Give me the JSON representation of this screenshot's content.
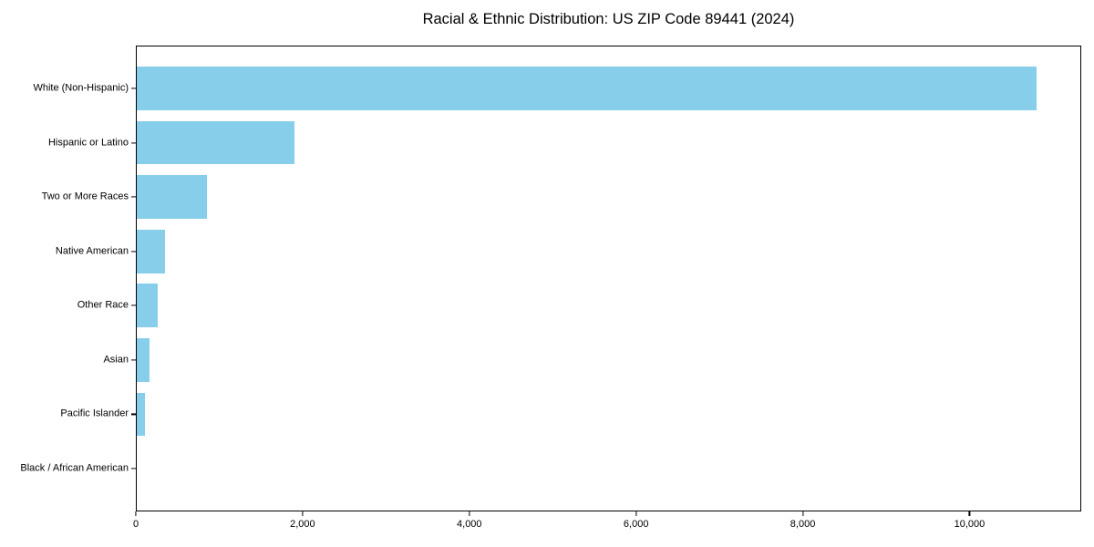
{
  "chart_data": {
    "type": "bar",
    "orientation": "horizontal",
    "title": "Racial & Ethnic Distribution: US ZIP Code 89441 (2024)",
    "categories": [
      "White (Non-Hispanic)",
      "Hispanic or Latino",
      "Two or More Races",
      "Native American",
      "Other Race",
      "Asian",
      "Pacific Islander",
      "Black / African American"
    ],
    "values": [
      10800,
      1900,
      850,
      350,
      260,
      160,
      110,
      0
    ],
    "xlabel": "",
    "ylabel": "",
    "xlim": [
      0,
      11340
    ],
    "xticks": [
      0,
      2000,
      4000,
      6000,
      8000,
      10000
    ],
    "xtick_labels": [
      "0",
      "2,000",
      "4,000",
      "6,000",
      "8,000",
      "10,000"
    ],
    "bar_color": "#87CEEB",
    "axis_color": "#000000",
    "grid": false,
    "legend": null,
    "y_order": "largest_on_top"
  }
}
